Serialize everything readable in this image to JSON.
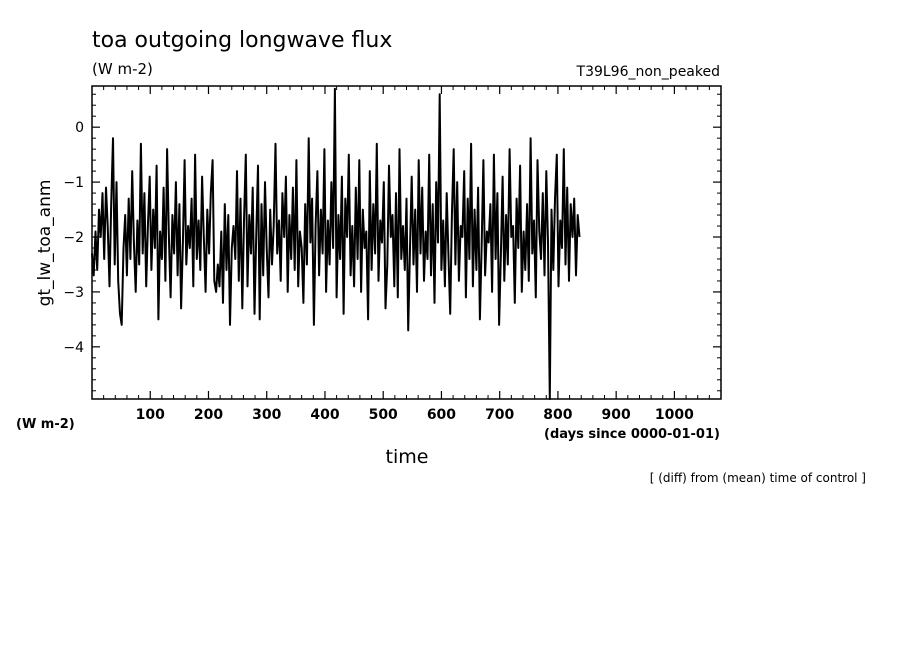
{
  "chart_data": {
    "type": "line",
    "title": "toa outgoing longwave flux",
    "units": "(W m-2)",
    "case_label": "T39L96_non_peaked",
    "ylabel": "gt_lw_toa_anm",
    "y_units": "(W m-2)",
    "xlabel": "time",
    "x_units": "(days since 0000-01-01)",
    "note": "[ (diff) from (mean) time of control ]",
    "xlim": [
      0,
      1080
    ],
    "ylim": [
      -4.95,
      0.75
    ],
    "x_ticks": [
      100,
      200,
      300,
      400,
      500,
      600,
      700,
      800,
      900,
      1000
    ],
    "y_ticks": [
      0,
      -1,
      -2,
      -3,
      -4
    ],
    "x_tick_labels": [
      "100",
      "200",
      "300",
      "400",
      "500",
      "600",
      "700",
      "800",
      "900",
      "1000"
    ],
    "y_tick_labels": [
      "0",
      "−1",
      "−2",
      "−3",
      "−4"
    ],
    "grid": false,
    "line_color": "#000000",
    "series": [
      {
        "x_step": 3,
        "x_start": 0,
        "values": [
          -2.3,
          -2.7,
          -1.9,
          -2.6,
          -1.5,
          -2.0,
          -1.2,
          -2.4,
          -1.1,
          -1.8,
          -2.9,
          -1.4,
          -0.2,
          -2.5,
          -1.0,
          -2.8,
          -3.4,
          -3.6,
          -2.2,
          -1.6,
          -2.7,
          -1.3,
          -2.4,
          -0.8,
          -2.1,
          -3.0,
          -1.7,
          -2.5,
          -0.3,
          -2.3,
          -1.2,
          -2.9,
          -1.8,
          -0.9,
          -2.6,
          -1.5,
          -2.2,
          -0.7,
          -3.5,
          -1.9,
          -2.4,
          -1.1,
          -2.8,
          -0.4,
          -2.0,
          -3.1,
          -1.6,
          -2.3,
          -1.0,
          -2.7,
          -1.4,
          -3.3,
          -2.1,
          -0.6,
          -2.5,
          -1.8,
          -2.2,
          -1.3,
          -2.9,
          -0.5,
          -2.4,
          -1.7,
          -2.6,
          -0.9,
          -2.0,
          -3.0,
          -1.5,
          -2.3,
          -1.2,
          -0.6,
          -2.8,
          -3.0,
          -2.5,
          -2.9,
          -1.9,
          -3.2,
          -1.4,
          -2.6,
          -1.6,
          -3.6,
          -2.2,
          -1.8,
          -2.4,
          -0.8,
          -2.8,
          -1.3,
          -3.3,
          -1.7,
          -0.5,
          -2.9,
          -1.6,
          -2.3,
          -1.1,
          -3.4,
          -2.0,
          -0.7,
          -3.5,
          -1.4,
          -2.7,
          -1.0,
          -2.2,
          -3.1,
          -1.5,
          -2.5,
          -1.8,
          -0.3,
          -2.3,
          -1.7,
          -2.8,
          -1.2,
          -2.0,
          -0.9,
          -3.0,
          -1.6,
          -2.4,
          -1.1,
          -2.6,
          -0.6,
          -2.9,
          -1.9,
          -2.2,
          -3.2,
          -1.4,
          -2.5,
          -0.2,
          -2.1,
          -1.3,
          -3.6,
          -1.8,
          -0.8,
          -2.7,
          -1.5,
          -2.3,
          -0.4,
          -3.0,
          -1.7,
          -2.5,
          -1.0,
          -2.2,
          0.7,
          -3.1,
          -1.6,
          -2.4,
          -0.9,
          -3.4,
          -1.3,
          -2.0,
          -0.5,
          -2.7,
          -1.8,
          -2.9,
          -1.1,
          -2.4,
          -0.6,
          -3.0,
          -1.5,
          -2.2,
          -1.9,
          -3.5,
          -0.8,
          -2.6,
          -1.4,
          -2.3,
          -0.3,
          -2.8,
          -1.7,
          -2.1,
          -1.0,
          -3.3,
          -2.5,
          -0.7,
          -2.0,
          -1.6,
          -2.9,
          -1.2,
          -3.1,
          -0.4,
          -2.4,
          -1.8,
          -2.6,
          -1.3,
          -3.7,
          -2.2,
          -0.9,
          -2.5,
          -1.5,
          -3.0,
          -0.6,
          -2.3,
          -1.1,
          -2.8,
          -1.9,
          -2.4,
          -0.5,
          -2.7,
          -1.4,
          -3.2,
          -1.0,
          -2.1,
          0.6,
          -2.6,
          -1.7,
          -2.9,
          -1.2,
          -2.3,
          -3.4,
          -1.6,
          -0.4,
          -2.5,
          -1.0,
          -2.8,
          -1.8,
          -2.0,
          -0.8,
          -3.1,
          -1.3,
          -2.4,
          -0.3,
          -2.9,
          -1.5,
          -2.6,
          -1.1,
          -3.5,
          -2.2,
          -0.6,
          -2.7,
          -1.9,
          -2.1,
          -1.4,
          -3.0,
          -0.5,
          -2.4,
          -1.2,
          -3.6,
          -2.3,
          -0.9,
          -2.8,
          -1.6,
          -2.5,
          -0.4,
          -2.0,
          -1.8,
          -3.2,
          -1.3,
          -2.2,
          -0.7,
          -3.0,
          -1.9,
          -2.6,
          -1.4,
          -2.8,
          -0.2,
          -2.3,
          -1.7,
          -3.1,
          -0.6,
          -1.9,
          -2.4,
          -1.2,
          -2.7,
          -0.8,
          -2.1,
          -4.95,
          -1.5,
          -2.6,
          -1.3,
          -0.5,
          -2.9,
          -1.7,
          -2.2,
          -0.4,
          -2.5,
          -1.1,
          -2.8,
          -1.4,
          -2.0,
          -1.3,
          -2.7,
          -1.6,
          -2.0
        ]
      }
    ]
  }
}
